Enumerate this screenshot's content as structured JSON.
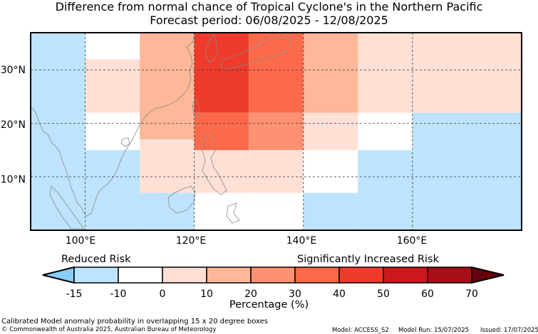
{
  "title_line1": "Difference from normal chance of Tropical Cyclone's in the Northern Pacific",
  "title_line2": "Forecast period: 06/08/2025 - 12/08/2025",
  "lon_labels": [
    "100°E",
    "120°E",
    "140°E",
    "160°E"
  ],
  "lat_labels": [
    "30°N",
    "20°N",
    "10°N"
  ],
  "legend": {
    "left_label": "Reduced Risk",
    "right_label": "Significantly Increased Risk",
    "ticks": [
      "-15",
      "-10",
      "0",
      "10",
      "20",
      "30",
      "40",
      "50",
      "60",
      "70"
    ],
    "axis_label": "Percentage (%)",
    "colors": [
      "#87cefa",
      "#bde4fc",
      "#ffffff",
      "#ffe0d5",
      "#fdb899",
      "#fc9272",
      "#fb6a4a",
      "#ef3b2c",
      "#cb181d",
      "#a50f15",
      "#67000d"
    ]
  },
  "footer": {
    "line1": "Calibrated Model anomaly probability in overlapping 15 x 20 degree boxes",
    "line2": "© Commonwealth of Australia 2025, Australian Bureau of Meteorology",
    "model": "Model: ACCESS_S2",
    "run": "Model Run: 15/07/2025",
    "issued": "Issued: 17/07/2025"
  },
  "chart_data": {
    "type": "heatmap",
    "description_units": "anomaly percentage category",
    "cells": [
      {
        "lon": [
          90,
          100
        ],
        "lat": [
          0,
          37
        ],
        "category": "-15"
      },
      {
        "lon": [
          100,
          110
        ],
        "lat": [
          32,
          37
        ],
        "category": "-10"
      },
      {
        "lon": [
          100,
          110
        ],
        "lat": [
          22,
          32
        ],
        "category": "0"
      },
      {
        "lon": [
          100,
          110
        ],
        "lat": [
          15,
          22
        ],
        "category": "-10"
      },
      {
        "lon": [
          100,
          110
        ],
        "lat": [
          0,
          15
        ],
        "category": "-15"
      },
      {
        "lon": [
          110,
          120
        ],
        "lat": [
          17,
          37
        ],
        "category": "10"
      },
      {
        "lon": [
          110,
          120
        ],
        "lat": [
          7,
          17
        ],
        "category": "0"
      },
      {
        "lon": [
          110,
          120
        ],
        "lat": [
          0,
          7
        ],
        "category": "-15"
      },
      {
        "lon": [
          120,
          130
        ],
        "lat": [
          22,
          37
        ],
        "category": "40"
      },
      {
        "lon": [
          120,
          130
        ],
        "lat": [
          15,
          22
        ],
        "category": "30"
      },
      {
        "lon": [
          120,
          130
        ],
        "lat": [
          7,
          15
        ],
        "category": "0"
      },
      {
        "lon": [
          120,
          130
        ],
        "lat": [
          0,
          7
        ],
        "category": "-10"
      },
      {
        "lon": [
          130,
          140
        ],
        "lat": [
          22,
          37
        ],
        "category": "30"
      },
      {
        "lon": [
          130,
          140
        ],
        "lat": [
          15,
          22
        ],
        "category": "20"
      },
      {
        "lon": [
          130,
          140
        ],
        "lat": [
          7,
          15
        ],
        "category": "0"
      },
      {
        "lon": [
          130,
          140
        ],
        "lat": [
          0,
          7
        ],
        "category": "-10"
      },
      {
        "lon": [
          140,
          150
        ],
        "lat": [
          22,
          37
        ],
        "category": "10"
      },
      {
        "lon": [
          140,
          150
        ],
        "lat": [
          15,
          22
        ],
        "category": "0"
      },
      {
        "lon": [
          140,
          150
        ],
        "lat": [
          7,
          15
        ],
        "category": "-10"
      },
      {
        "lon": [
          140,
          150
        ],
        "lat": [
          0,
          7
        ],
        "category": "-15"
      },
      {
        "lon": [
          150,
          160
        ],
        "lat": [
          32,
          37
        ],
        "category": "0"
      },
      {
        "lon": [
          150,
          160
        ],
        "lat": [
          22,
          32
        ],
        "category": "0"
      },
      {
        "lon": [
          150,
          160
        ],
        "lat": [
          15,
          22
        ],
        "category": "-10"
      },
      {
        "lon": [
          150,
          160
        ],
        "lat": [
          0,
          15
        ],
        "category": "-15"
      },
      {
        "lon": [
          160,
          180
        ],
        "lat": [
          22,
          37
        ],
        "category": "0"
      },
      {
        "lon": [
          160,
          180
        ],
        "lat": [
          0,
          22
        ],
        "category": "-15"
      }
    ],
    "xlim": [
      90,
      180
    ],
    "ylim": [
      0,
      37
    ]
  }
}
